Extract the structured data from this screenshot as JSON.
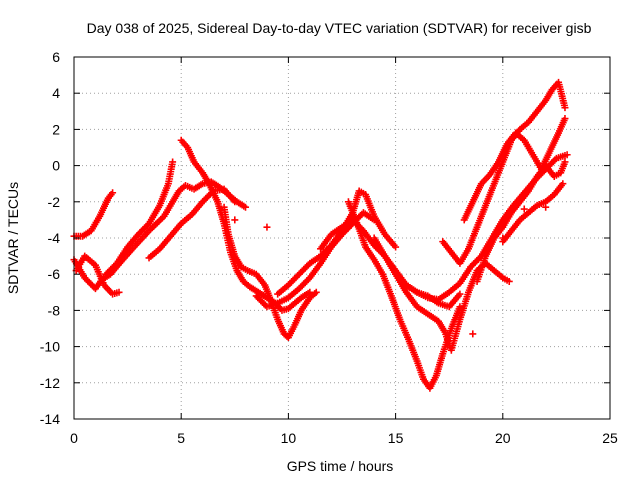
{
  "chart_data": {
    "type": "scatter",
    "title": "Day 038 of 2025, Sidereal Day-to-day VTEC variation (SDTVAR) for receiver gisb",
    "xlabel": "GPS time / hours",
    "ylabel": "SDTVAR / TECUs",
    "xlim": [
      0,
      25
    ],
    "ylim": [
      -14,
      6
    ],
    "xticks": [
      0,
      5,
      10,
      15,
      20,
      25
    ],
    "yticks": [
      -14,
      -12,
      -10,
      -8,
      -6,
      -4,
      -2,
      0,
      2,
      4,
      6
    ],
    "xtick_labels": [
      "0",
      "5",
      "10",
      "15",
      "20",
      "25"
    ],
    "ytick_labels": [
      "-14",
      "-12",
      "-10",
      "-8",
      "-6",
      "-4",
      "-2",
      "0",
      "2",
      "4",
      "6"
    ],
    "grid": true,
    "marker": "+",
    "color": "#ff0000",
    "series": [
      {
        "name": "trace-1",
        "x": [
          0.0,
          0.5,
          1.0,
          1.3,
          1.7,
          2.2,
          2.8,
          3.5,
          4.2,
          4.6,
          4.9,
          5.2,
          5.6,
          6.0,
          6.4,
          6.8,
          7.2,
          7.6,
          8.0
        ],
        "y": [
          -5.2,
          -6.2,
          -6.8,
          -6.3,
          -6.0,
          -5.3,
          -4.5,
          -3.6,
          -2.8,
          -2.0,
          -1.4,
          -1.1,
          -1.3,
          -1.0,
          -0.9,
          -1.2,
          -1.6,
          -2.0,
          -2.3
        ]
      },
      {
        "name": "trace-2",
        "x": [
          0.0,
          0.4,
          0.8,
          1.2,
          1.6,
          1.8
        ],
        "y": [
          -3.9,
          -3.9,
          -3.6,
          -2.8,
          -1.8,
          -1.5
        ]
      },
      {
        "name": "trace-3",
        "x": [
          0.1,
          0.5,
          1.0,
          1.4,
          1.8,
          2.1
        ],
        "y": [
          -5.8,
          -5.0,
          -5.5,
          -6.6,
          -7.1,
          -7.0
        ]
      },
      {
        "name": "trace-4",
        "x": [
          1.5,
          2.0,
          2.5,
          3.0,
          3.5,
          4.0,
          4.4,
          4.6
        ],
        "y": [
          -6.0,
          -5.4,
          -4.5,
          -3.8,
          -3.2,
          -2.2,
          -1.0,
          0.2
        ]
      },
      {
        "name": "trace-5",
        "x": [
          3.5,
          4.0,
          4.5,
          5.0,
          5.5,
          6.0,
          6.5,
          7.0,
          7.5
        ],
        "y": [
          -5.1,
          -4.6,
          -3.9,
          -3.2,
          -2.7,
          -2.0,
          -1.4,
          -1.3,
          -2.0
        ]
      },
      {
        "name": "trace-6",
        "x": [
          5.0,
          5.3,
          5.6,
          6.0,
          6.3,
          6.7,
          7.0,
          7.3,
          7.6,
          7.9,
          8.2,
          8.6,
          9.0,
          9.4,
          9.7,
          10.0,
          10.3,
          10.6,
          11.0
        ],
        "y": [
          1.4,
          1.0,
          0.2,
          -0.4,
          -1.0,
          -2.0,
          -3.2,
          -4.8,
          -5.8,
          -6.4,
          -6.7,
          -7.0,
          -7.3,
          -7.6,
          -8.0,
          -7.9,
          -7.6,
          -7.3,
          -7.0
        ]
      },
      {
        "name": "trace-7",
        "x": [
          7.0,
          7.2,
          7.5,
          7.8,
          8.1,
          8.5,
          8.9,
          9.2,
          9.5,
          9.8,
          10.0,
          10.3,
          10.6,
          11.0,
          11.3
        ],
        "y": [
          -2.3,
          -3.8,
          -5.0,
          -5.6,
          -5.8,
          -6.0,
          -6.6,
          -7.5,
          -8.5,
          -9.3,
          -9.5,
          -8.8,
          -8.0,
          -7.3,
          -7.0
        ]
      },
      {
        "name": "trace-8",
        "x": [
          8.5,
          9.0,
          9.5,
          10.0,
          10.5,
          11.0,
          11.5,
          12.0,
          12.5,
          13.0,
          13.5,
          14.0
        ],
        "y": [
          -7.2,
          -7.8,
          -7.6,
          -7.3,
          -6.8,
          -6.2,
          -5.4,
          -4.5,
          -3.8,
          -3.2,
          -2.6,
          -3.0
        ]
      },
      {
        "name": "trace-9",
        "x": [
          9.5,
          10.0,
          10.5,
          11.0,
          11.5,
          12.0,
          12.5,
          13.0,
          13.3,
          13.6,
          14.0,
          14.5,
          15.0
        ],
        "y": [
          -7.1,
          -6.6,
          -6.0,
          -5.4,
          -5.0,
          -4.4,
          -3.6,
          -2.6,
          -1.4,
          -1.6,
          -2.8,
          -3.8,
          -4.5
        ]
      },
      {
        "name": "trace-10",
        "x": [
          11.5,
          12.0,
          12.5,
          13.0,
          13.5,
          14.0,
          14.5,
          15.0,
          15.5,
          16.0,
          16.5,
          17.0,
          17.5,
          18.0
        ],
        "y": [
          -4.6,
          -3.8,
          -3.4,
          -3.0,
          -3.6,
          -4.4,
          -5.0,
          -5.8,
          -6.6,
          -7.0,
          -7.2,
          -7.6,
          -7.8,
          -7.1
        ]
      },
      {
        "name": "trace-11",
        "x": [
          12.8,
          13.0,
          13.3,
          13.6,
          14.0,
          14.4,
          14.8,
          15.2,
          15.6,
          16.0,
          16.3,
          16.6,
          16.9,
          17.2,
          17.6,
          18.0
        ],
        "y": [
          -2.0,
          -2.6,
          -3.5,
          -4.5,
          -5.2,
          -6.0,
          -7.2,
          -8.5,
          -9.6,
          -10.8,
          -11.8,
          -12.3,
          -11.6,
          -10.4,
          -9.0,
          -7.8
        ]
      },
      {
        "name": "trace-12",
        "x": [
          14.0,
          14.5,
          15.0,
          15.5,
          16.0,
          16.5,
          17.0,
          17.3,
          17.6,
          18.0,
          18.4,
          18.8,
          19.2,
          19.6,
          20.0,
          20.3
        ],
        "y": [
          -4.0,
          -5.0,
          -6.0,
          -7.0,
          -7.8,
          -8.2,
          -8.6,
          -9.2,
          -10.2,
          -8.5,
          -7.0,
          -5.8,
          -5.4,
          -5.8,
          -6.2,
          -6.4
        ]
      },
      {
        "name": "trace-13",
        "x": [
          15.0,
          15.5,
          16.0,
          16.5,
          17.0,
          17.5,
          18.0,
          18.5,
          19.0,
          19.5,
          20.0,
          20.5,
          21.0,
          21.5,
          22.0,
          22.5,
          23.0
        ],
        "y": [
          -6.0,
          -6.6,
          -7.0,
          -7.3,
          -7.4,
          -7.0,
          -6.5,
          -5.6,
          -5.0,
          -4.0,
          -3.0,
          -2.2,
          -1.5,
          -0.8,
          -0.2,
          0.4,
          0.6
        ]
      },
      {
        "name": "trace-14",
        "x": [
          17.2,
          17.6,
          18.0,
          18.4,
          18.8,
          19.2,
          19.6,
          20.0,
          20.4,
          20.8,
          21.2,
          21.6,
          22.0,
          22.3,
          22.6,
          22.9
        ],
        "y": [
          -4.2,
          -4.8,
          -5.4,
          -4.6,
          -3.4,
          -2.2,
          -1.0,
          0.2,
          1.4,
          2.0,
          2.4,
          3.0,
          3.6,
          4.2,
          4.6,
          3.2
        ]
      },
      {
        "name": "trace-15",
        "x": [
          18.2,
          18.6,
          19.0,
          19.4,
          19.8,
          20.2,
          20.6,
          21.0,
          21.4,
          21.8,
          22.2,
          22.6,
          22.9
        ],
        "y": [
          -3.0,
          -2.0,
          -1.0,
          -0.5,
          0.2,
          1.2,
          1.8,
          1.4,
          0.6,
          -0.2,
          0.8,
          1.8,
          2.6
        ]
      },
      {
        "name": "trace-16",
        "x": [
          18.8,
          19.2,
          19.6,
          20.0,
          20.4,
          20.8,
          21.2,
          21.6,
          22.0,
          22.4,
          22.7,
          22.9
        ],
        "y": [
          -6.4,
          -5.0,
          -4.0,
          -3.4,
          -2.6,
          -2.0,
          -1.4,
          -0.6,
          0.0,
          -0.6,
          -0.4,
          0.2
        ]
      },
      {
        "name": "trace-17",
        "x": [
          20.0,
          20.4,
          20.8,
          21.2,
          21.6,
          22.0,
          22.4,
          22.8
        ],
        "y": [
          -4.2,
          -3.6,
          -3.0,
          -2.6,
          -2.2,
          -2.0,
          -1.6,
          -1.0
        ]
      }
    ],
    "outliers": {
      "x": [
        7.5,
        9.0,
        18.6,
        20.0,
        21.0,
        22.0
      ],
      "y": [
        -3.0,
        -3.4,
        -9.3,
        -4.0,
        -2.4,
        -2.3
      ]
    }
  }
}
